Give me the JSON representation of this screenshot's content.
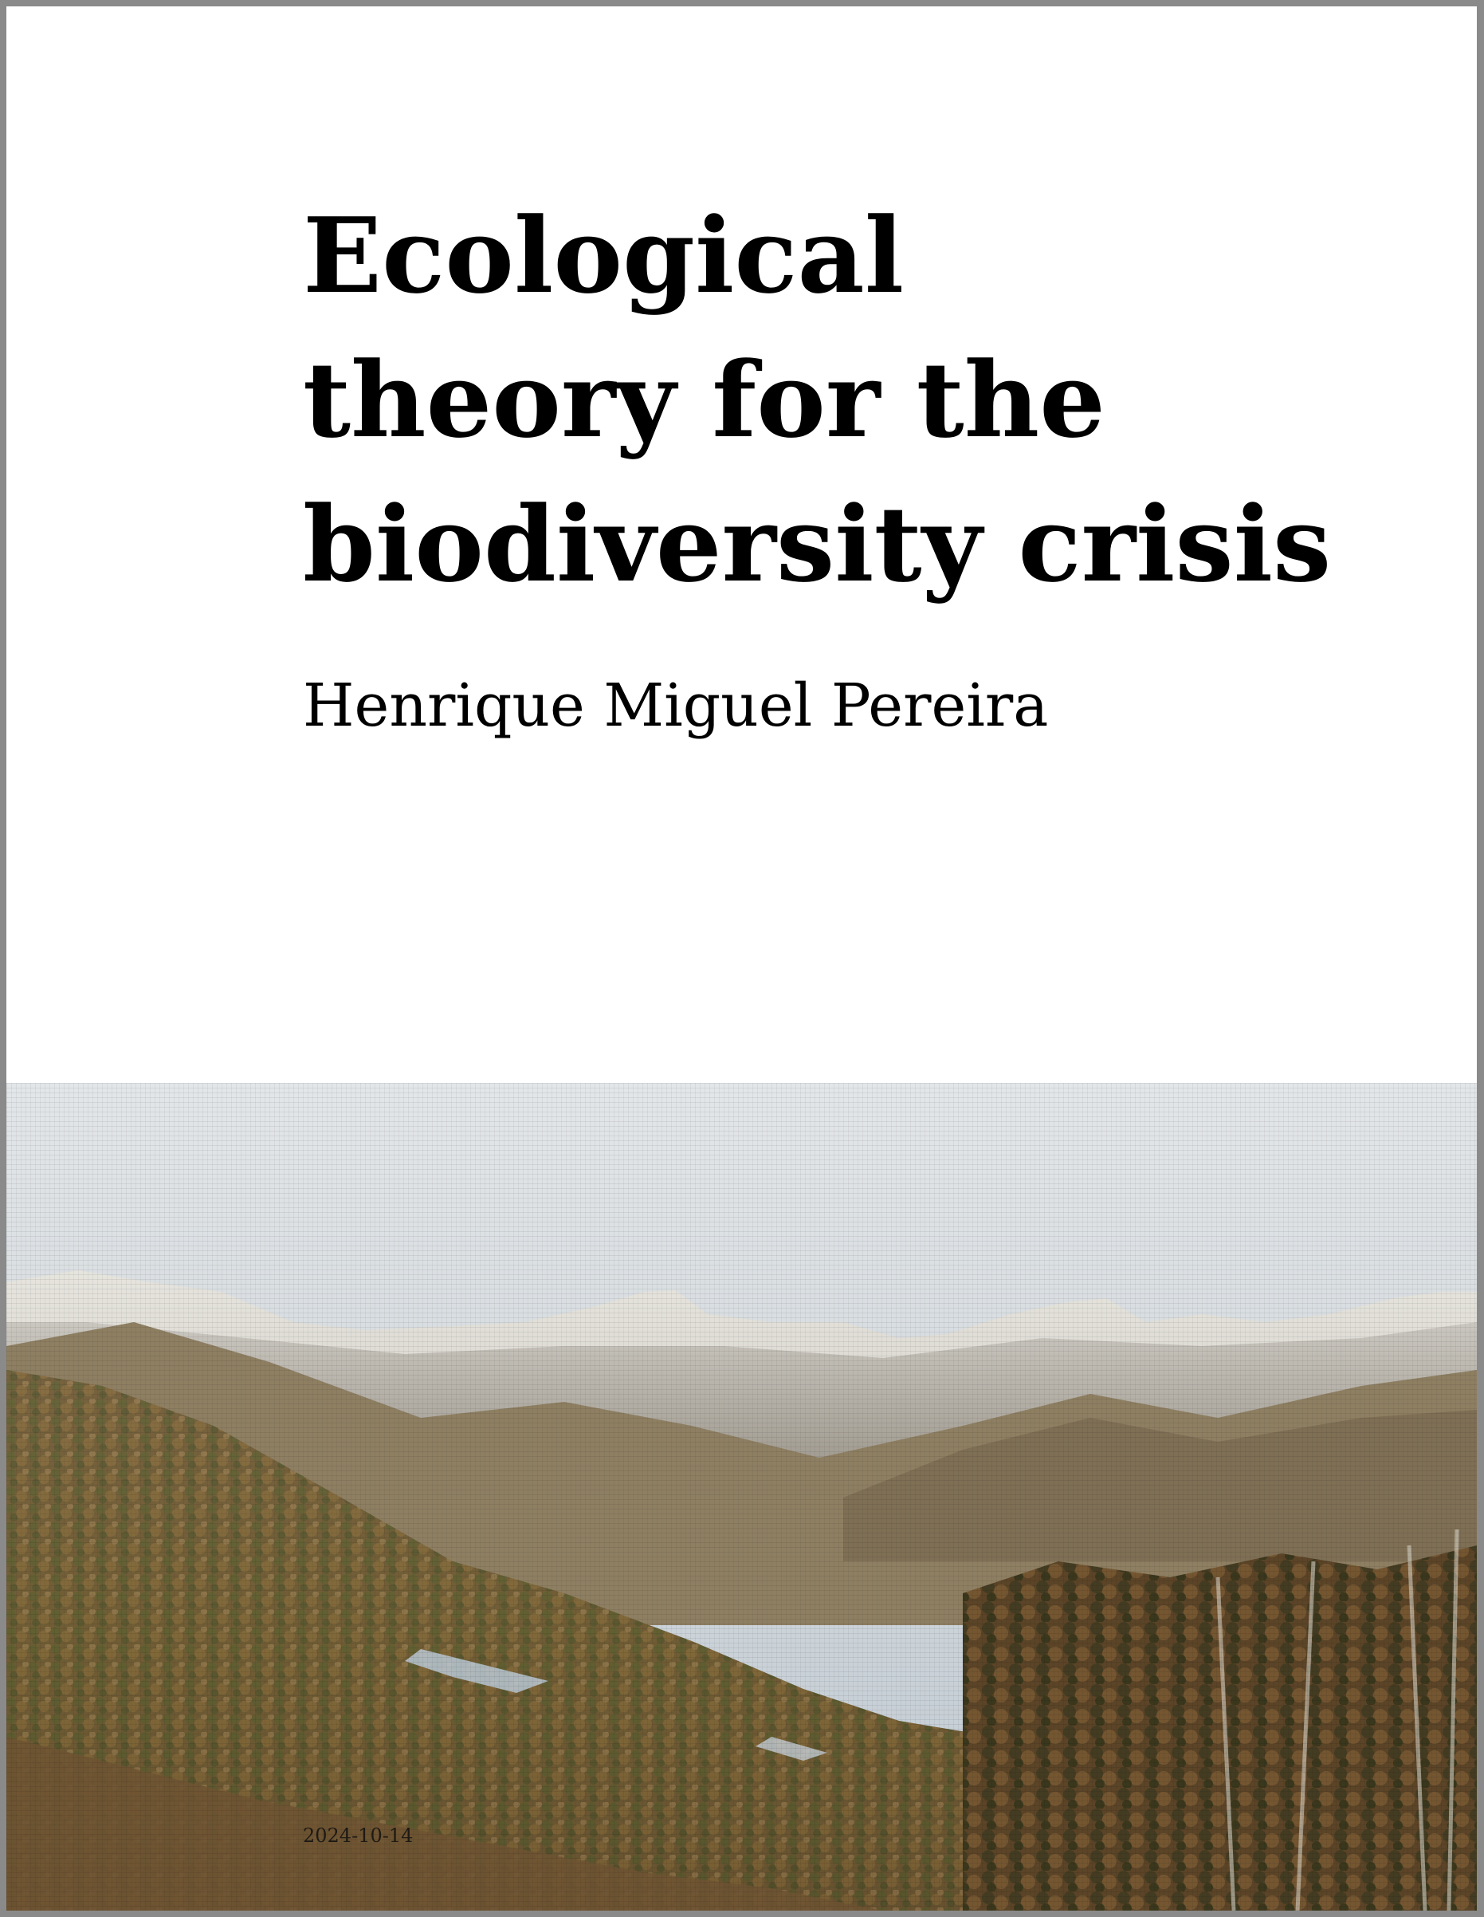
{
  "cover": {
    "title_lines": [
      "Ecological",
      "theory for the",
      "biodiversity crisis"
    ],
    "author": "Henrique Miguel Pereira",
    "date": "2024-10-14",
    "image": {
      "subject": "mountain-valley-landscape-photo",
      "colors": {
        "sky": "#c7d0d7",
        "snow": "#e4e2dc",
        "rock": "#8e8a83",
        "shrub": "#8b6a3c",
        "forest": "#4f5c2c",
        "shadow": "#2e2a1e"
      }
    }
  }
}
